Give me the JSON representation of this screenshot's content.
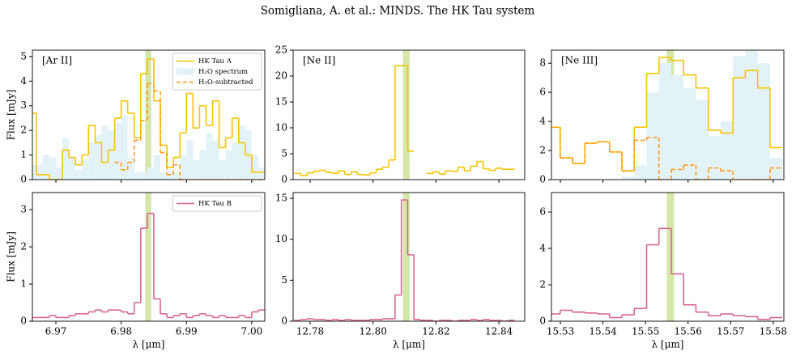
{
  "header": "Somigliana, A. et al.: MINDS. The HK Tau system",
  "chart_data": [
    {
      "type": "step",
      "label": "[Ar II]",
      "ylabel": "Flux [mJy]",
      "legend": "upper right",
      "xlim": [
        6.9664,
        7.002
      ],
      "ylim": [
        0,
        5.26
      ],
      "yticks": [
        0,
        1,
        2,
        3,
        4,
        5
      ],
      "highlight": [
        6.9837,
        6.9846
      ],
      "highlight_color": "#d4e6a8",
      "x": [
        6.9665,
        6.9675,
        6.9685,
        6.9695,
        6.9705,
        6.9715,
        6.9725,
        6.9735,
        6.9745,
        6.9755,
        6.9765,
        6.9775,
        6.9785,
        6.9795,
        6.9805,
        6.9815,
        6.9825,
        6.9835,
        6.9845,
        6.9855,
        6.9865,
        6.9875,
        6.9885,
        6.9895,
        6.9905,
        6.9915,
        6.9925,
        6.9935,
        6.9945,
        6.9955,
        6.9965,
        6.9975,
        6.9985,
        6.9995,
        7.0005,
        7.0015
      ],
      "series": [
        {
          "name": "HK Tau A",
          "color": "#f5c400",
          "kind": "step",
          "values": [
            2.7,
            0.2,
            0.2,
            0.0,
            0.0,
            1.2,
            0.9,
            0.6,
            1.0,
            2.2,
            1.5,
            0.7,
            1.2,
            2.5,
            3.2,
            2.7,
            1.7,
            4.3,
            4.9,
            3.2,
            1.4,
            0.5,
            0.9,
            1.9,
            3.5,
            2.1,
            3.0,
            2.2,
            3.2,
            1.3,
            1.7,
            2.5,
            1.5,
            1.0,
            0.3,
            0.3
          ]
        },
        {
          "name": "H₂O spectrum",
          "color": "#e3f2f7",
          "kind": "fill",
          "values": [
            0.6,
            0.6,
            1.0,
            0.9,
            0.5,
            1.7,
            0.9,
            0.4,
            0.8,
            1.5,
            1.8,
            2.2,
            2.0,
            2.3,
            2.6,
            0.9,
            0.3,
            0.3,
            0.5,
            1.0,
            0.3,
            0.3,
            0.3,
            1.0,
            1.6,
            0.8,
            1.2,
            1.9,
            1.6,
            0.8,
            1.2,
            1.5,
            2.2,
            2.0,
            1.0,
            0.5
          ]
        },
        {
          "name": "H₂O-subtracted",
          "color": "#ff9a1a",
          "kind": "dashed",
          "values": [
            null,
            null,
            null,
            null,
            null,
            null,
            null,
            null,
            null,
            null,
            null,
            null,
            null,
            0.7,
            0.4,
            0.7,
            1.6,
            2.4,
            3.9,
            3.6,
            1.1,
            0.2,
            0.6,
            0.0,
            0.0,
            0.0,
            0.0,
            0.0,
            0.0,
            0.0,
            0.0,
            0.0,
            0.0,
            0.0,
            0.0,
            0.0
          ]
        }
      ]
    },
    {
      "type": "step",
      "label": "[Ne II]",
      "xlim": [
        12.7746,
        12.8482
      ],
      "ylim": [
        0,
        25
      ],
      "yticks": [
        0,
        5,
        10,
        15,
        20,
        25
      ],
      "highlight": [
        12.8095,
        12.8116
      ],
      "highlight_color": "#d4e6a8",
      "x": [
        12.776,
        12.778,
        12.78,
        12.782,
        12.784,
        12.786,
        12.788,
        12.79,
        12.792,
        12.794,
        12.796,
        12.798,
        12.8,
        12.802,
        12.804,
        12.806,
        12.808,
        12.81,
        12.812,
        12.814,
        12.816,
        12.818,
        12.82,
        12.822,
        12.824,
        12.826,
        12.828,
        12.83,
        12.832,
        12.834,
        12.836,
        12.838,
        12.84,
        12.842,
        12.844
      ],
      "series": [
        {
          "name": "HK Tau A",
          "color": "#f5c400",
          "kind": "step",
          "values": [
            1.2,
            0.8,
            1.3,
            1.6,
            1.8,
            1.4,
            1.2,
            1.7,
            1.0,
            1.5,
            1.0,
            0.9,
            1.3,
            2.0,
            2.4,
            3.8,
            22,
            22,
            5.5,
            null,
            null,
            1.2,
            1.5,
            1.1,
            1.7,
            1.6,
            2.4,
            1.7,
            2.6,
            3.5,
            2.1,
            1.8,
            2.2,
            2.0,
            2.0
          ]
        }
      ]
    },
    {
      "type": "step",
      "label": "[Ne III]",
      "xlim": [
        15.5279,
        15.5825
      ],
      "ylim": [
        0,
        8.9
      ],
      "yticks": [
        0,
        2,
        4,
        6,
        8
      ],
      "highlight": [
        15.555,
        15.5567
      ],
      "highlight_color": "#d4e6a8",
      "x": [
        15.5285,
        15.5314,
        15.5343,
        15.5372,
        15.5401,
        15.543,
        15.5459,
        15.5488,
        15.5517,
        15.5546,
        15.5575,
        15.5604,
        15.5633,
        15.5662,
        15.5691,
        15.572,
        15.5749,
        15.5778,
        15.5807
      ],
      "series": [
        {
          "name": "HK Tau A",
          "color": "#f5c400",
          "kind": "step",
          "values": [
            3.6,
            1.5,
            1.1,
            2.5,
            2.6,
            1.9,
            0.6,
            3.6,
            7.3,
            8.4,
            8.2,
            7.2,
            6.3,
            3.4,
            3.2,
            7.0,
            7.5,
            6.3,
            2.2
          ]
        },
        {
          "name": "H₂O spectrum",
          "color": "#e3f2f7",
          "kind": "fill",
          "values": [
            0,
            0,
            0,
            0,
            0,
            0,
            0.2,
            1.0,
            6.0,
            8.0,
            7.2,
            6.3,
            5.5,
            3.0,
            4.0,
            8.5,
            8.9,
            8.0,
            1.5
          ]
        },
        {
          "name": "H₂O-subtracted",
          "color": "#ff9a1a",
          "kind": "dashed",
          "values": [
            3.6,
            1.5,
            1.1,
            2.5,
            2.6,
            1.9,
            0.6,
            2.7,
            2.9,
            0.0,
            0.7,
            1.0,
            0.0,
            0.8,
            0.6,
            0.0,
            0.0,
            0.0,
            0.8
          ]
        }
      ]
    },
    {
      "type": "step",
      "ylabel": "Flux [mJy]",
      "xlabel": "λ [μm]",
      "legend": "upper right",
      "xlim": [
        6.9664,
        7.002
      ],
      "ylim": [
        0,
        3.46
      ],
      "yticks": [
        0,
        1,
        2,
        3
      ],
      "xticks": [
        6.97,
        6.98,
        6.99,
        {
          "value": 7.0,
          "label": "7.00"
        }
      ],
      "highlight": [
        6.9837,
        6.9846
      ],
      "highlight_color": "#d4e6a8",
      "x": [
        6.9665,
        6.9675,
        6.9685,
        6.9695,
        6.9705,
        6.9715,
        6.9725,
        6.9735,
        6.9745,
        6.9755,
        6.9765,
        6.9775,
        6.9785,
        6.9795,
        6.9805,
        6.9815,
        6.9825,
        6.9835,
        6.9845,
        6.9855,
        6.9865,
        6.9875,
        6.9885,
        6.9895,
        6.9905,
        6.9915,
        6.9925,
        6.9935,
        6.9945,
        6.9955,
        6.9965,
        6.9975,
        6.9985,
        6.9995,
        7.0005,
        7.0015
      ],
      "series": [
        {
          "name": "HK Tau B",
          "color": "#d9668f",
          "kind": "step",
          "values": [
            0.1,
            0.1,
            0.1,
            0.15,
            0.1,
            0.1,
            0.15,
            0.2,
            0.2,
            0.25,
            0.3,
            0.25,
            0.3,
            0.3,
            0.25,
            0.2,
            0.5,
            2.5,
            2.9,
            0.6,
            0.2,
            0.1,
            0.15,
            0.2,
            0.1,
            0.15,
            0.2,
            0.15,
            0.1,
            0.15,
            0.1,
            0.1,
            0.15,
            0.1,
            0.25,
            0.3
          ]
        }
      ]
    },
    {
      "type": "step",
      "xlabel": "λ [μm]",
      "xlim": [
        12.7746,
        12.8482
      ],
      "ylim": [
        0,
        15.7
      ],
      "yticks": [
        0,
        5,
        10,
        15
      ],
      "xticks": [
        12.78,
        {
          "value": 12.8,
          "label": "12.80"
        },
        12.82,
        12.84
      ],
      "highlight": [
        12.8095,
        12.8116
      ],
      "highlight_color": "#d4e6a8",
      "x": [
        12.776,
        12.778,
        12.78,
        12.782,
        12.784,
        12.786,
        12.788,
        12.79,
        12.792,
        12.794,
        12.796,
        12.798,
        12.8,
        12.802,
        12.804,
        12.806,
        12.808,
        12.81,
        12.812,
        12.814,
        12.816,
        12.818,
        12.82,
        12.822,
        12.824,
        12.826,
        12.828,
        12.83,
        12.832,
        12.834,
        12.836,
        12.838,
        12.84,
        12.842,
        12.844
      ],
      "series": [
        {
          "name": "HK Tau B",
          "color": "#d9668f",
          "kind": "step",
          "values": [
            0.1,
            0.2,
            0.3,
            0.2,
            0.2,
            0.1,
            0.2,
            0.1,
            0.2,
            0.1,
            0.1,
            0.1,
            0.2,
            0.2,
            0.3,
            0.3,
            3.2,
            14.8,
            8.1,
            0.2,
            0.1,
            0.1,
            0.0,
            0.1,
            0.1,
            0.0,
            0.1,
            0.1,
            0.2,
            0.1,
            0.2,
            0.1,
            0.1,
            0.0,
            0.1
          ]
        }
      ]
    },
    {
      "type": "step",
      "xlabel": "λ [μm]",
      "xlim": [
        15.5279,
        15.5825
      ],
      "ylim": [
        0,
        7.07
      ],
      "yticks": [
        0,
        2,
        4,
        6
      ],
      "xticks": [
        15.53,
        15.54,
        15.55,
        15.56,
        15.57,
        15.58
      ],
      "highlight": [
        15.555,
        15.5567
      ],
      "highlight_color": "#d4e6a8",
      "x": [
        15.5285,
        15.5314,
        15.5343,
        15.5372,
        15.5401,
        15.543,
        15.5459,
        15.5488,
        15.5517,
        15.5546,
        15.5575,
        15.5604,
        15.5633,
        15.5662,
        15.5691,
        15.572,
        15.5749,
        15.5778,
        15.5807
      ],
      "series": [
        {
          "name": "HK Tau B",
          "color": "#d9668f",
          "kind": "step",
          "values": [
            0.4,
            0.6,
            0.5,
            0.45,
            0.4,
            0.2,
            0.35,
            0.7,
            4.2,
            5.1,
            2.6,
            0.9,
            0.5,
            0.3,
            0.4,
            0.3,
            0.25,
            0.1,
            0.2
          ]
        }
      ]
    }
  ]
}
